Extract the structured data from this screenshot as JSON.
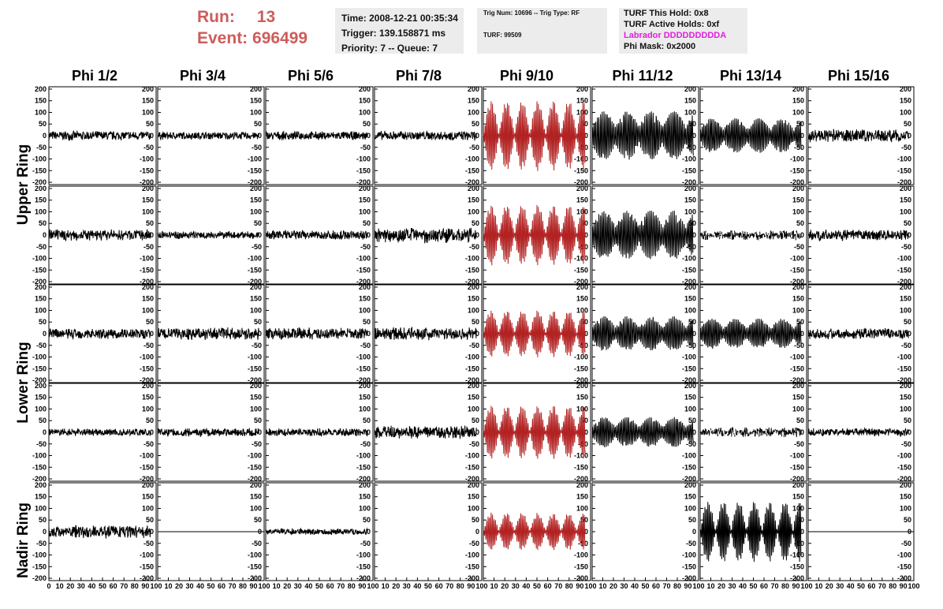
{
  "header": {
    "run_label": "Run:",
    "run_value": "13",
    "event_label": "Event:",
    "event_value": "696499",
    "time": "Time: 2008-12-21 00:35:34",
    "trigger": "Trigger: 139.158871 ms",
    "priority": "Priority: 7 -- Queue: 7",
    "trig_num": "Trig Num: 10696 -- Trig Type: RF",
    "turf": "TURF: 99509",
    "turf_hold": "TURF This Hold: 0x8",
    "turf_active": "TURF Active Holds: 0xf",
    "labrador": "Labrador DDDDDDDDDA",
    "phi_mask": "Phi Mask: 0x2000"
  },
  "colors": {
    "normal": "#000000",
    "triggered": "#b22222",
    "run_text": "#cd5c5c",
    "labrador": "#e11ee1"
  },
  "column_labels": [
    "Phi 1/2",
    "Phi 3/4",
    "Phi 5/6",
    "Phi 7/8",
    "Phi 9/10",
    "Phi 11/12",
    "Phi 13/14",
    "Phi 15/16"
  ],
  "ring_labels": [
    "Upper Ring",
    "Lower Ring",
    "Nadir Ring"
  ],
  "chart_data": {
    "type": "line",
    "y_ticks": [
      -200,
      -150,
      -100,
      -50,
      0,
      50,
      100,
      150,
      200
    ],
    "ylim": [
      -210,
      210
    ],
    "x_ticks": [
      0,
      10,
      20,
      30,
      40,
      50,
      60,
      70,
      80,
      90,
      100
    ],
    "x_tick_labels": [
      "0",
      "10",
      "20",
      "30",
      "40",
      "50",
      "60",
      "70",
      "80",
      "90",
      "100"
    ],
    "xlim": [
      0,
      100
    ],
    "panels": [
      [
        {
          "style": "noise",
          "amp": 22,
          "color": "normal",
          "dur": 95
        },
        {
          "style": "noise",
          "amp": 18,
          "color": "normal",
          "dur": 95
        },
        {
          "style": "noise",
          "amp": 20,
          "color": "normal",
          "dur": 95
        },
        {
          "style": "noise",
          "amp": 22,
          "color": "normal",
          "dur": 95
        },
        {
          "style": "beat",
          "amp": 150,
          "color": "triggered",
          "dur": 95
        },
        {
          "style": "burst",
          "amp": 105,
          "color": "normal",
          "dur": 95
        },
        {
          "style": "burst",
          "amp": 75,
          "color": "normal",
          "dur": 95
        },
        {
          "style": "noise",
          "amp": 30,
          "color": "normal",
          "dur": 95
        }
      ],
      [
        {
          "style": "noise",
          "amp": 25,
          "color": "normal",
          "dur": 95
        },
        {
          "style": "noise",
          "amp": 18,
          "color": "normal",
          "dur": 95
        },
        {
          "style": "noise",
          "amp": 22,
          "color": "normal",
          "dur": 95
        },
        {
          "style": "noise",
          "amp": 35,
          "color": "normal",
          "dur": 95
        },
        {
          "style": "beat",
          "amp": 130,
          "color": "triggered",
          "dur": 95
        },
        {
          "style": "burst",
          "amp": 105,
          "color": "normal",
          "dur": 95
        },
        {
          "style": "dashed",
          "amp": 22,
          "color": "normal",
          "dur": 95
        },
        {
          "style": "noise",
          "amp": 25,
          "color": "normal",
          "dur": 95
        }
      ],
      [
        {
          "style": "noise",
          "amp": 25,
          "color": "normal",
          "dur": 95
        },
        {
          "style": "noise",
          "amp": 28,
          "color": "normal",
          "dur": 95
        },
        {
          "style": "noise",
          "amp": 28,
          "color": "normal",
          "dur": 95
        },
        {
          "style": "noise",
          "amp": 30,
          "color": "normal",
          "dur": 95
        },
        {
          "style": "beat",
          "amp": 100,
          "color": "triggered",
          "dur": 95
        },
        {
          "style": "burst",
          "amp": 75,
          "color": "normal",
          "dur": 95
        },
        {
          "style": "burst",
          "amp": 65,
          "color": "normal",
          "dur": 95
        },
        {
          "style": "noise",
          "amp": 25,
          "color": "normal",
          "dur": 95
        }
      ],
      [
        {
          "style": "noise",
          "amp": 18,
          "color": "normal",
          "dur": 95
        },
        {
          "style": "noise",
          "amp": 20,
          "color": "normal",
          "dur": 95
        },
        {
          "style": "noise",
          "amp": 18,
          "color": "normal",
          "dur": 95
        },
        {
          "style": "noise",
          "amp": 30,
          "color": "normal",
          "dur": 95
        },
        {
          "style": "beat",
          "amp": 115,
          "color": "triggered",
          "dur": 95
        },
        {
          "style": "burst",
          "amp": 65,
          "color": "normal",
          "dur": 95
        },
        {
          "style": "dashed",
          "amp": 22,
          "color": "normal",
          "dur": 95
        },
        {
          "style": "noise",
          "amp": 18,
          "color": "normal",
          "dur": 95
        }
      ],
      [
        {
          "style": "noise",
          "amp": 30,
          "color": "normal",
          "dur": 95
        },
        {
          "style": "flat",
          "amp": 0,
          "color": "normal",
          "dur": 100
        },
        {
          "style": "noise",
          "amp": 15,
          "color": "normal",
          "dur": 95
        },
        {
          "style": "flat",
          "amp": 0,
          "color": "normal",
          "dur": 0
        },
        {
          "style": "beat",
          "amp": 80,
          "color": "triggered",
          "dur": 95
        },
        {
          "style": "flat",
          "amp": 0,
          "color": "normal",
          "dur": 0
        },
        {
          "style": "beat",
          "amp": 130,
          "color": "normal",
          "dur": 95
        },
        {
          "style": "flat",
          "amp": 0,
          "color": "normal",
          "dur": 100
        }
      ]
    ]
  }
}
